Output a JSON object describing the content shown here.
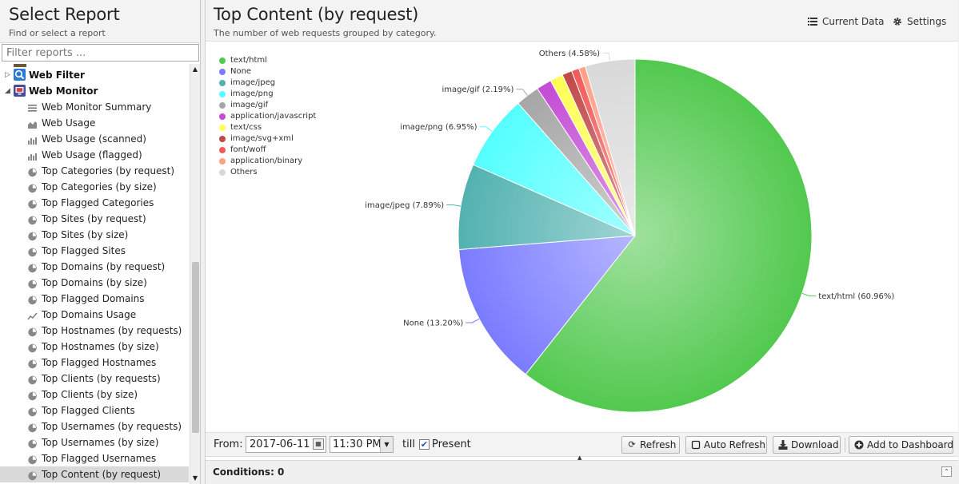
{
  "left_panel": {
    "title": "Select Report",
    "subtitle": "Find or select a report",
    "filter_placeholder": "Filter reports ...",
    "groups": [
      {
        "label": "Web Filter",
        "expanded": false,
        "icon": "web-filter-icon",
        "color": "#2b7bd6"
      },
      {
        "label": "Web Monitor",
        "expanded": true,
        "icon": "web-monitor-icon",
        "color": "#4a4a9a"
      }
    ],
    "items": [
      {
        "label": "Web Monitor Summary",
        "icon": "list"
      },
      {
        "label": "Web Usage",
        "icon": "area"
      },
      {
        "label": "Web Usage (scanned)",
        "icon": "bar"
      },
      {
        "label": "Web Usage (flagged)",
        "icon": "bar"
      },
      {
        "label": "Top Categories (by request)",
        "icon": "pie"
      },
      {
        "label": "Top Categories (by size)",
        "icon": "pie"
      },
      {
        "label": "Top Flagged Categories",
        "icon": "pie"
      },
      {
        "label": "Top Sites (by request)",
        "icon": "pie"
      },
      {
        "label": "Top Sites (by size)",
        "icon": "pie"
      },
      {
        "label": "Top Flagged Sites",
        "icon": "pie"
      },
      {
        "label": "Top Domains (by request)",
        "icon": "pie"
      },
      {
        "label": "Top Domains (by size)",
        "icon": "pie"
      },
      {
        "label": "Top Flagged Domains",
        "icon": "pie"
      },
      {
        "label": "Top Domains Usage",
        "icon": "line"
      },
      {
        "label": "Top Hostnames (by requests)",
        "icon": "pie"
      },
      {
        "label": "Top Hostnames (by size)",
        "icon": "pie"
      },
      {
        "label": "Top Flagged Hostnames",
        "icon": "pie"
      },
      {
        "label": "Top Clients (by requests)",
        "icon": "pie"
      },
      {
        "label": "Top Clients (by size)",
        "icon": "pie"
      },
      {
        "label": "Top Flagged Clients",
        "icon": "pie"
      },
      {
        "label": "Top Usernames (by requests)",
        "icon": "pie"
      },
      {
        "label": "Top Usernames (by size)",
        "icon": "pie"
      },
      {
        "label": "Top Flagged Usernames",
        "icon": "pie"
      },
      {
        "label": "Top Content (by request)",
        "icon": "pie",
        "selected": true
      }
    ]
  },
  "report": {
    "title": "Top Content (by request)",
    "subtitle": "The number of web requests grouped by category.",
    "current_data_label": "Current Data",
    "settings_label": "Settings"
  },
  "chart_data": {
    "type": "pie",
    "categories": [
      "text/html",
      "None",
      "image/jpeg",
      "image/png",
      "image/gif",
      "application/javascript",
      "text/css",
      "image/svg+xml",
      "font/woff",
      "application/binary",
      "Others"
    ],
    "values": [
      60.96,
      13.2,
      7.89,
      6.95,
      2.19,
      1.4,
      1.2,
      0.9,
      0.7,
      0.6,
      4.58
    ],
    "colors": [
      "#52c94f",
      "#7a7cff",
      "#52b2b0",
      "#55ffff",
      "#a6a6a6",
      "#c44bd6",
      "#ffff55",
      "#c04848",
      "#f25a5a",
      "#ff9f88",
      "#d9d9d9"
    ],
    "slice_labels": [
      "text/html (60.96%)",
      "None (13.20%)",
      "image/jpeg (7.89%)",
      "image/png (6.95%)",
      "image/gif (2.19%)",
      "",
      "",
      "",
      "",
      "",
      "Others (4.58%)"
    ],
    "legend_position": "top-left"
  },
  "toolbar": {
    "from_label": "From:",
    "date_value": "2017-06-11",
    "time_value": "11:30 PM",
    "till_label": "till",
    "present_checked": true,
    "present_label": "Present",
    "refresh_label": "Refresh",
    "auto_refresh_label": "Auto Refresh",
    "download_label": "Download",
    "add_dashboard_label": "Add to Dashboard"
  },
  "conditions": {
    "label": "Conditions: 0"
  }
}
